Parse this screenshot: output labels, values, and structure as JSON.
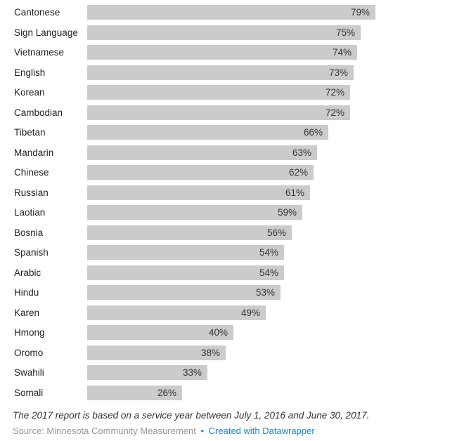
{
  "chart_data": {
    "type": "bar",
    "orientation": "horizontal",
    "categories": [
      "Cantonese",
      "Sign Language",
      "Vietnamese",
      "English",
      "Korean",
      "Cambodian",
      "Tibetan",
      "Mandarin",
      "Chinese",
      "Russian",
      "Laotian",
      "Bosnia",
      "Spanish",
      "Arabic",
      "Hindu",
      "Karen",
      "Hmong",
      "Oromo",
      "Swahili",
      "Somali"
    ],
    "values": [
      79,
      75,
      74,
      73,
      72,
      72,
      66,
      63,
      62,
      61,
      59,
      56,
      54,
      54,
      53,
      49,
      40,
      38,
      33,
      26
    ],
    "value_suffix": "%",
    "xlim": [
      0,
      79
    ],
    "grid": false,
    "legend": false,
    "bar_color": "#cbcbcb",
    "category_label_color": "#222222",
    "value_label_color": "#333333"
  },
  "notes": {
    "text": "The 2017 report is based on a service year between July 1, 2016 and June 30, 2017."
  },
  "source": {
    "prefix": "Source: ",
    "name": "Minnesota Community Measurement",
    "separator": "•",
    "link_label": "Created with Datawrapper",
    "gray_color": "#979797",
    "link_color": "#1e87c6"
  }
}
